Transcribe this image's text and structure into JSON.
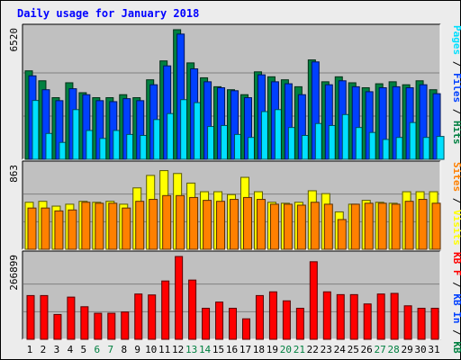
{
  "chart_data": {
    "type": "bar",
    "title": "Daily usage for January 2018",
    "categories": [
      "1",
      "2",
      "3",
      "4",
      "5",
      "6",
      "7",
      "8",
      "9",
      "10",
      "11",
      "12",
      "13",
      "14",
      "15",
      "16",
      "17",
      "18",
      "19",
      "20",
      "21",
      "22",
      "23",
      "24",
      "25",
      "26",
      "27",
      "28",
      "29",
      "30",
      "31"
    ],
    "weekend_days": [
      "6",
      "7",
      "13",
      "14",
      "20",
      "21",
      "27",
      "28"
    ],
    "panels": [
      {
        "name": "hits-files-pages",
        "ymax_label": "6520",
        "ymax": 6520,
        "right_label_parts": [
          {
            "text": "Pages",
            "color": "#00e0ff"
          },
          {
            "text": " / ",
            "color": "#000000"
          },
          {
            "text": "Files",
            "color": "#0040ff"
          },
          {
            "text": " / ",
            "color": "#000000"
          },
          {
            "text": "Hits",
            "color": "#008040"
          }
        ],
        "series": [
          {
            "name": "Hits",
            "color": "#008040",
            "values": [
              4450,
              3950,
              3100,
              3850,
              3350,
              3100,
              3100,
              3250,
              3100,
              4000,
              4950,
              6520,
              4850,
              4100,
              3650,
              3500,
              3250,
              4400,
              4150,
              4000,
              3650,
              5000,
              3900,
              4150,
              3850,
              3600,
              3800,
              3900,
              3750,
              3950,
              3500
            ]
          },
          {
            "name": "Files",
            "color": "#0040ff",
            "values": [
              4200,
              3500,
              2950,
              3550,
              3250,
              2950,
              2900,
              3050,
              2950,
              3750,
              4700,
              6300,
              4550,
              3900,
              3600,
              3450,
              3100,
              4250,
              3900,
              3800,
              3250,
              4900,
              3750,
              3950,
              3650,
              3400,
              3600,
              3650,
              3600,
              3750,
              3300
            ]
          },
          {
            "name": "Pages",
            "color": "#00e0ff",
            "values": [
              2960,
              1300,
              850,
              2500,
              1450,
              1050,
              1450,
              1250,
              1200,
              2000,
              2300,
              3000,
              2850,
              1650,
              1700,
              1250,
              1100,
              2400,
              2500,
              1600,
              1200,
              1800,
              1700,
              2250,
              1600,
              1350,
              1000,
              1100,
              1850,
              1100,
              1150
            ]
          }
        ]
      },
      {
        "name": "visits-sites",
        "ymax_label": "863",
        "ymax": 863,
        "right_label_parts": [
          {
            "text": "Sites",
            "color": "#ff8000"
          },
          {
            "text": " / ",
            "color": "#000000"
          },
          {
            "text": "Visits",
            "color": "#ffff00"
          }
        ],
        "series": [
          {
            "name": "Visits",
            "color": "#ffff00",
            "values": [
              490,
              500,
              450,
              470,
              500,
              490,
              500,
              470,
              640,
              770,
              820,
              790,
              690,
              600,
              600,
              570,
              750,
              600,
              490,
              480,
              490,
              610,
              580,
              390,
              470,
              510,
              490,
              480,
              600,
              600,
              600
            ]
          },
          {
            "name": "Sites",
            "color": "#ff8000",
            "values": [
              430,
              430,
              400,
              410,
              490,
              480,
              480,
              430,
              500,
              520,
              560,
              560,
              540,
              510,
              500,
              520,
              540,
              520,
              470,
              470,
              460,
              490,
              470,
              310,
              470,
              480,
              480,
              470,
              500,
              520,
              480
            ]
          }
        ]
      },
      {
        "name": "kbytes",
        "ymax_label": "266899",
        "ymax": 266899,
        "right_label_parts": [
          {
            "text": "KB F",
            "color": "#ff0000"
          },
          {
            "text": " / ",
            "color": "#000000"
          },
          {
            "text": "KB In",
            "color": "#0040ff"
          },
          {
            "text": " / ",
            "color": "#000000"
          },
          {
            "text": "KB Out",
            "color": "#008040"
          }
        ],
        "series": [
          {
            "name": "KB F",
            "color": "#ff0000",
            "values": [
              141000,
              141000,
              80000,
              136000,
              105000,
              84000,
              84000,
              88000,
              146000,
              143000,
              188000,
              266899,
              191000,
              100000,
              120000,
              100000,
              66000,
              141000,
              153000,
              124000,
              100000,
              250000,
              153000,
              144000,
              144000,
              114000,
              146000,
              148000,
              108000,
              100000,
              100000
            ]
          }
        ]
      }
    ]
  },
  "colors": {
    "background": "#ececec",
    "plot_bg": "#c0c0c0",
    "title": "#0000ff",
    "weekend_label": "#008040",
    "weekday_label": "#000000"
  }
}
